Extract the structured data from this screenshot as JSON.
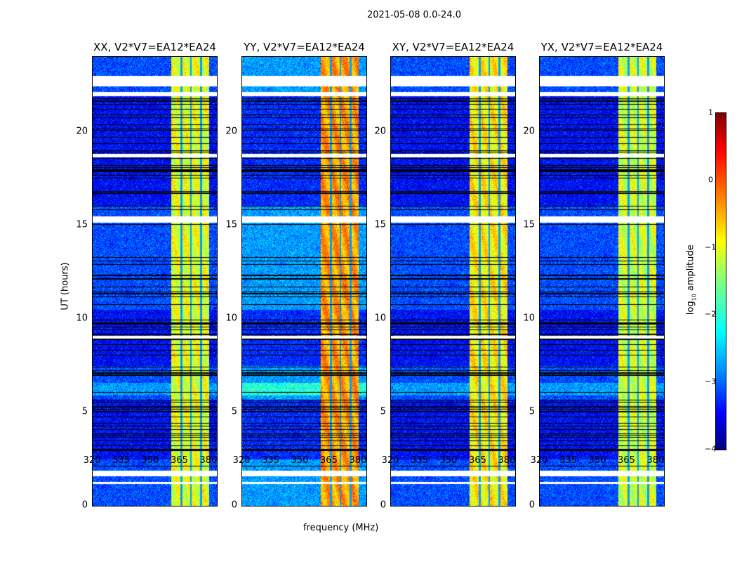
{
  "chart_data": {
    "type": "heatmap",
    "suptitle": "2021-05-08 0.0-24.0",
    "xlabel": "frequency (MHz)",
    "ylabel": "UT (hours)",
    "xlim": [
      320,
      384
    ],
    "ylim": [
      0,
      24
    ],
    "xticks": [
      "320",
      "335",
      "350",
      "365",
      "380"
    ],
    "yticks": [
      "0",
      "5",
      "10",
      "15",
      "20"
    ],
    "colorbar": {
      "label_prefix": "log",
      "label_sub": "10",
      "label_suffix": " amplitude",
      "range": [
        -4,
        1
      ],
      "ticks": [
        "1",
        "0",
        "−1",
        "−2",
        "−3",
        "−4"
      ],
      "colormap": "jet"
    },
    "bright_band_MHz": [
      360.4,
      380
    ],
    "dark_channels_MHz": [
      365.5,
      370.5,
      375.6
    ],
    "flagged_hours": [
      [
        22.45,
        23.0
      ],
      [
        21.9,
        22.15
      ],
      [
        18.65,
        18.85
      ],
      [
        15.15,
        15.5
      ],
      [
        8.95,
        9.1
      ],
      [
        1.6,
        1.9
      ],
      [
        1.2,
        1.3
      ]
    ],
    "panels": [
      {
        "title": "XX, V2*V7=EA12*EA24",
        "background_log_amp": -3.0,
        "band_log_amp": -1.0
      },
      {
        "title": "YY, V2*V7=EA12*EA24",
        "background_log_amp": -2.6,
        "band_log_amp": -0.4
      },
      {
        "title": "XY, V2*V7=EA12*EA24",
        "background_log_amp": -3.0,
        "band_log_amp": -0.8
      },
      {
        "title": "YX, V2*V7=EA12*EA24",
        "background_log_amp": -3.0,
        "band_log_amp": -1.1
      }
    ]
  }
}
